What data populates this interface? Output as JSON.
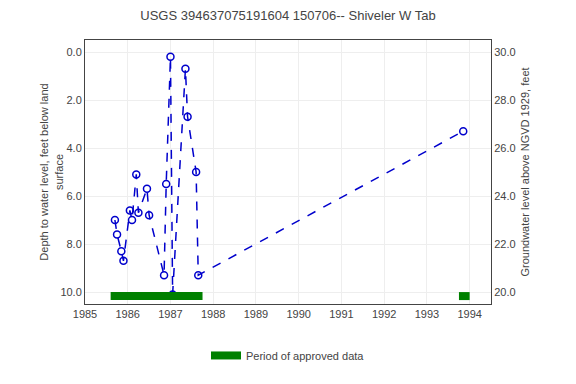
{
  "chart_data": {
    "type": "line",
    "title": "USGS 394637075191604 150706-- Shiveler W Tab",
    "ylabel": "Depth to water level, feet below land\nsurface",
    "y2label": "Groundwater level above NGVD 1929, feet",
    "x": [
      1985.7,
      1985.75,
      1985.85,
      1985.9,
      1986.05,
      1986.1,
      1986.2,
      1986.25,
      1986.45,
      1986.5,
      1986.85,
      1986.9,
      1987.0,
      1987.05,
      1987.35,
      1987.4,
      1987.6,
      1987.65,
      1993.85
    ],
    "series": [
      {
        "values": [
          7.0,
          7.6,
          8.3,
          8.7,
          6.6,
          7.0,
          5.1,
          6.7,
          5.7,
          6.8,
          9.3,
          5.5,
          0.2,
          10.1,
          0.7,
          2.7,
          5.0,
          9.3,
          3.3
        ],
        "color": "#0000cc",
        "marker": "circle-open",
        "line_style": "dash"
      },
      {
        "name": "Period of approved data",
        "type": "period",
        "color": "#008000",
        "periods": [
          [
            1985.6,
            1987.75
          ],
          [
            1993.75,
            1994.0
          ]
        ]
      }
    ],
    "xlim": [
      1985,
      1994.5
    ],
    "xticks": [
      1985,
      1986,
      1987,
      1988,
      1989,
      1990,
      1991,
      1992,
      1993,
      1994
    ],
    "ylim": [
      10.5,
      -0.5
    ],
    "yticks": [
      {
        "value": 0.0,
        "label": "0.0"
      },
      {
        "value": 2.0,
        "label": "2.0"
      },
      {
        "value": 4.0,
        "label": "4.0"
      },
      {
        "value": 6.0,
        "label": "6.0"
      },
      {
        "value": 8.0,
        "label": "8.0"
      },
      {
        "value": 10.0,
        "label": "10.0"
      }
    ],
    "y2lim": [
      19.5,
      30.5
    ],
    "y2ticks": [
      {
        "value": 20.0,
        "label": "20.0"
      },
      {
        "value": 22.0,
        "label": "22.0"
      },
      {
        "value": 24.0,
        "label": "24.0"
      },
      {
        "value": 26.0,
        "label": "26.0"
      },
      {
        "value": 28.0,
        "label": "28.0"
      },
      {
        "value": 30.0,
        "label": "30.0"
      }
    ],
    "grid": true,
    "legend": "bottom"
  }
}
